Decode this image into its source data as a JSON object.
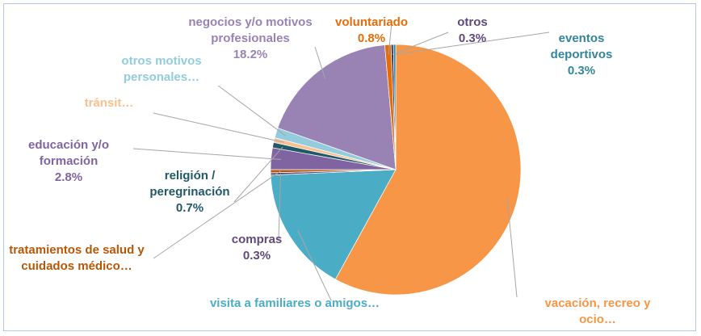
{
  "chart_data": {
    "type": "pie",
    "categories": [
      "vacación, recreo y ocio…",
      "visita a familiares o amigos…",
      "compras",
      "tratamientos de salud y cuidados médico…",
      "educación y/o formación",
      "religión / peregrinación",
      "tránsit…",
      "otros motivos personales…",
      "negocios y/o motivos profesionales",
      "voluntariado",
      "otros",
      "eventos deportivos"
    ],
    "values": [
      58.0,
      16.3,
      0.3,
      0.4,
      2.8,
      0.7,
      0.6,
      1.3,
      18.2,
      0.8,
      0.3,
      0.3
    ],
    "value_labels": [
      null,
      null,
      "0.3%",
      null,
      "2.8%",
      "0.7%",
      null,
      null,
      "18.2%",
      "0.8%",
      "0.3%",
      "0.3%"
    ],
    "colors": [
      "#f79646",
      "#4bacc6",
      "#5f4a7b",
      "#b65708",
      "#8064a2",
      "#215968",
      "#fac090",
      "#93cddd",
      "#9983b5",
      "#e46c0a",
      "#403152",
      "#31859c"
    ]
  }
}
